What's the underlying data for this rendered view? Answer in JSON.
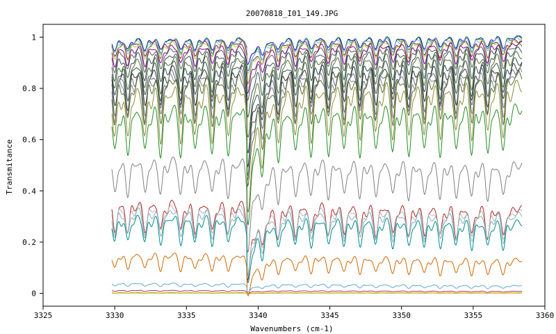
{
  "chart_data": {
    "type": "line",
    "title": "20070818_I01_149.JPG",
    "xlabel": "Wavenumbers (cm-1)",
    "ylabel": "Transmitance",
    "xlim": [
      3325,
      3360
    ],
    "ylim": [
      -0.05,
      1.05
    ],
    "xticks": [
      3325,
      3330,
      3335,
      3340,
      3345,
      3350,
      3355,
      3360
    ],
    "yticks": [
      0,
      0.2,
      0.4,
      0.6,
      0.8,
      1
    ],
    "ytick_labels": [
      "0",
      "0.2",
      "0.4",
      "0.6",
      "0.8",
      "1"
    ],
    "grid": false,
    "legend": false,
    "x_range_data": [
      3329.8,
      3358.4
    ],
    "line_positions": [
      3330.0,
      3330.9,
      3332.1,
      3333.2,
      3334.6,
      3335.6,
      3336.8,
      3337.9,
      3339.3,
      3340.3,
      3341.4,
      3342.6,
      3343.7,
      3344.9,
      3346.0,
      3347.1,
      3348.2,
      3349.4,
      3350.5,
      3351.6,
      3352.7,
      3353.8,
      3354.9,
      3356.0,
      3357.1
    ],
    "series": [
      {
        "color": "#0000cc",
        "base_start": 0.99,
        "base_end": 1.0,
        "dip": 0.04
      },
      {
        "color": "#228b22",
        "base_start": 0.99,
        "base_end": 1.0,
        "dip": 0.05
      },
      {
        "color": "#7fb2ff",
        "base_start": 0.985,
        "base_end": 0.995,
        "dip": 0.05
      },
      {
        "color": "#8b0a50",
        "base_start": 0.98,
        "base_end": 0.985,
        "dip": 0.06
      },
      {
        "color": "#9acd32",
        "base_start": 0.975,
        "base_end": 0.985,
        "dip": 0.06
      },
      {
        "color": "#8b008b",
        "base_start": 0.96,
        "base_end": 0.975,
        "dip": 0.07
      },
      {
        "color": "#555555",
        "base_start": 0.95,
        "base_end": 0.965,
        "dip": 0.08
      },
      {
        "color": "#2f4f4f",
        "base_start": 0.93,
        "base_end": 0.95,
        "dip": 0.1
      },
      {
        "color": "#556b2f",
        "base_start": 0.91,
        "base_end": 0.93,
        "dip": 0.12
      },
      {
        "color": "#2f4f4f",
        "base_start": 0.89,
        "base_end": 0.905,
        "dip": 0.13
      },
      {
        "color": "#333333",
        "base_start": 0.87,
        "base_end": 0.885,
        "dip": 0.14
      },
      {
        "color": "#5f6f7f",
        "base_start": 0.855,
        "base_end": 0.87,
        "dip": 0.15
      },
      {
        "color": "#808080",
        "base_start": 0.845,
        "base_end": 0.86,
        "dip": 0.16
      },
      {
        "color": "#556b2f",
        "base_start": 0.835,
        "base_end": 0.85,
        "dip": 0.17
      },
      {
        "color": "#8b8b3a",
        "base_start": 0.79,
        "base_end": 0.81,
        "dip": 0.19
      },
      {
        "color": "#228b22",
        "base_start": 0.715,
        "base_end": 0.72,
        "dip": 0.17
      },
      {
        "color": "#808080",
        "base_start": 0.52,
        "base_end": 0.5,
        "dip": 0.13
      },
      {
        "color": "#b22222",
        "base_start": 0.355,
        "base_end": 0.33,
        "dip": 0.11
      },
      {
        "color": "#b5b5b5",
        "base_start": 0.34,
        "base_end": 0.315,
        "dip": 0.1
      },
      {
        "color": "#87aebc",
        "base_start": 0.325,
        "base_end": 0.305,
        "dip": 0.1
      },
      {
        "color": "#008b8b",
        "base_start": 0.3,
        "base_end": 0.275,
        "dip": 0.1
      },
      {
        "color": "#cd6600",
        "base_start": 0.155,
        "base_end": 0.13,
        "dip": 0.06
      },
      {
        "color": "#5fa8d3",
        "base_start": 0.04,
        "base_end": 0.03,
        "dip": 0.012
      },
      {
        "color": "#b03060",
        "base_start": 0.012,
        "base_end": 0.008,
        "dip": 0.004
      },
      {
        "color": "#32cd32",
        "base_start": 0.003,
        "base_end": 0.002,
        "dip": 0.002
      },
      {
        "color": "#ffa500",
        "base_start": 0.001,
        "base_end": 0.001,
        "dip": 0.001
      }
    ]
  }
}
